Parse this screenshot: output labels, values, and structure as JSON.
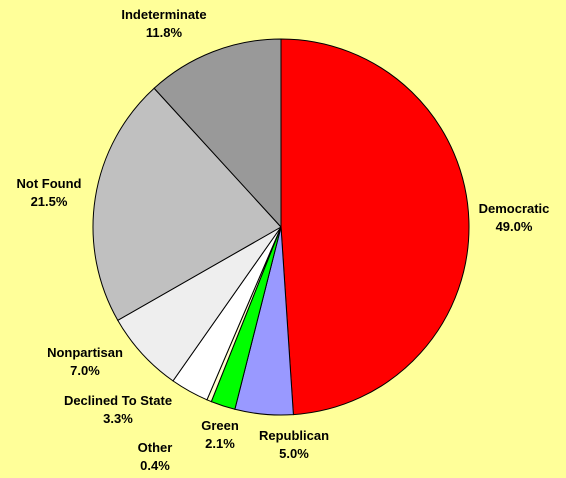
{
  "chart_data": {
    "type": "pie",
    "title": "",
    "start_angle_deg": 0,
    "direction": "clockwise",
    "slices": [
      {
        "label": "Democratic",
        "value": 49.0,
        "pct_label": "49.0%",
        "color": "#FF0000"
      },
      {
        "label": "Republican",
        "value": 5.0,
        "pct_label": "5.0%",
        "color": "#9999FF"
      },
      {
        "label": "Green",
        "value": 2.1,
        "pct_label": "2.1%",
        "color": "#00FF00"
      },
      {
        "label": "Other",
        "value": 0.4,
        "pct_label": "0.4%",
        "color": "#FFFFCC"
      },
      {
        "label": "Declined To State",
        "value": 3.3,
        "pct_label": "3.3%",
        "color": "#FFFFFF"
      },
      {
        "label": "Nonpartisan",
        "value": 7.0,
        "pct_label": "7.0%",
        "color": "#EEEEEE"
      },
      {
        "label": "Not Found",
        "value": 21.5,
        "pct_label": "21.5%",
        "color": "#C0C0C0"
      },
      {
        "label": "Indeterminate",
        "value": 11.8,
        "pct_label": "11.8%",
        "color": "#999999"
      }
    ],
    "background": "#FFFF99",
    "legend": "none"
  }
}
